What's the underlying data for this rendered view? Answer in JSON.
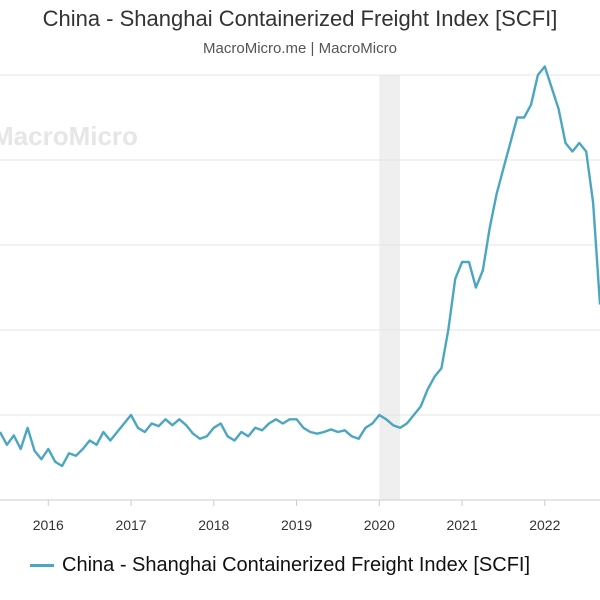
{
  "header": {
    "title": "China - Shanghai Containerized Freight Index [SCFI]",
    "source": "MacroMicro.me | MacroMicro"
  },
  "watermark": "MacroMicro",
  "colors": {
    "series": "#4ba7c0",
    "grid": "#e6e6e6",
    "recession_band": "#efefef",
    "axis": "#333333"
  },
  "chart_data": {
    "type": "line",
    "title": "China - Shanghai Containerized Freight Index [SCFI]",
    "xlabel": "",
    "ylabel": "",
    "x_ticks": [
      "2016",
      "2017",
      "2018",
      "2019",
      "2020",
      "2021",
      "2022"
    ],
    "xlim": [
      "2015-06",
      "2022-09"
    ],
    "ylim": [
      0,
      5000
    ],
    "y_gridlines": [
      1000,
      2000,
      3000,
      4000,
      5000
    ],
    "y_tick_labels_visible": false,
    "grid": "horizontal",
    "legend": "bottom",
    "shaded_band": {
      "from": "2020-01",
      "to": "2020-04"
    },
    "series": [
      {
        "name": "China - Shanghai Containerized Freight Index [SCFI]",
        "points": [
          {
            "x": "2015-06",
            "y": 800
          },
          {
            "x": "2015-07",
            "y": 650
          },
          {
            "x": "2015-08",
            "y": 760
          },
          {
            "x": "2015-09",
            "y": 600
          },
          {
            "x": "2015-10",
            "y": 850
          },
          {
            "x": "2015-11",
            "y": 580
          },
          {
            "x": "2015-12",
            "y": 480
          },
          {
            "x": "2016-01",
            "y": 600
          },
          {
            "x": "2016-02",
            "y": 450
          },
          {
            "x": "2016-03",
            "y": 400
          },
          {
            "x": "2016-04",
            "y": 550
          },
          {
            "x": "2016-05",
            "y": 520
          },
          {
            "x": "2016-06",
            "y": 600
          },
          {
            "x": "2016-07",
            "y": 700
          },
          {
            "x": "2016-08",
            "y": 650
          },
          {
            "x": "2016-09",
            "y": 800
          },
          {
            "x": "2016-10",
            "y": 700
          },
          {
            "x": "2016-11",
            "y": 800
          },
          {
            "x": "2016-12",
            "y": 900
          },
          {
            "x": "2017-01",
            "y": 1000
          },
          {
            "x": "2017-02",
            "y": 850
          },
          {
            "x": "2017-03",
            "y": 800
          },
          {
            "x": "2017-04",
            "y": 900
          },
          {
            "x": "2017-05",
            "y": 870
          },
          {
            "x": "2017-06",
            "y": 950
          },
          {
            "x": "2017-07",
            "y": 880
          },
          {
            "x": "2017-08",
            "y": 950
          },
          {
            "x": "2017-09",
            "y": 880
          },
          {
            "x": "2017-10",
            "y": 780
          },
          {
            "x": "2017-11",
            "y": 720
          },
          {
            "x": "2017-12",
            "y": 750
          },
          {
            "x": "2018-01",
            "y": 850
          },
          {
            "x": "2018-02",
            "y": 900
          },
          {
            "x": "2018-03",
            "y": 750
          },
          {
            "x": "2018-04",
            "y": 700
          },
          {
            "x": "2018-05",
            "y": 800
          },
          {
            "x": "2018-06",
            "y": 750
          },
          {
            "x": "2018-07",
            "y": 850
          },
          {
            "x": "2018-08",
            "y": 820
          },
          {
            "x": "2018-09",
            "y": 900
          },
          {
            "x": "2018-10",
            "y": 950
          },
          {
            "x": "2018-11",
            "y": 900
          },
          {
            "x": "2018-12",
            "y": 950
          },
          {
            "x": "2019-01",
            "y": 950
          },
          {
            "x": "2019-02",
            "y": 850
          },
          {
            "x": "2019-03",
            "y": 800
          },
          {
            "x": "2019-04",
            "y": 780
          },
          {
            "x": "2019-05",
            "y": 800
          },
          {
            "x": "2019-06",
            "y": 830
          },
          {
            "x": "2019-07",
            "y": 800
          },
          {
            "x": "2019-08",
            "y": 820
          },
          {
            "x": "2019-09",
            "y": 750
          },
          {
            "x": "2019-10",
            "y": 720
          },
          {
            "x": "2019-11",
            "y": 850
          },
          {
            "x": "2019-12",
            "y": 900
          },
          {
            "x": "2020-01",
            "y": 1000
          },
          {
            "x": "2020-02",
            "y": 950
          },
          {
            "x": "2020-03",
            "y": 880
          },
          {
            "x": "2020-04",
            "y": 850
          },
          {
            "x": "2020-05",
            "y": 900
          },
          {
            "x": "2020-06",
            "y": 1000
          },
          {
            "x": "2020-07",
            "y": 1100
          },
          {
            "x": "2020-08",
            "y": 1300
          },
          {
            "x": "2020-09",
            "y": 1450
          },
          {
            "x": "2020-10",
            "y": 1550
          },
          {
            "x": "2020-11",
            "y": 2000
          },
          {
            "x": "2020-12",
            "y": 2600
          },
          {
            "x": "2021-01",
            "y": 2800
          },
          {
            "x": "2021-02",
            "y": 2800
          },
          {
            "x": "2021-03",
            "y": 2500
          },
          {
            "x": "2021-04",
            "y": 2700
          },
          {
            "x": "2021-05",
            "y": 3200
          },
          {
            "x": "2021-06",
            "y": 3600
          },
          {
            "x": "2021-07",
            "y": 3900
          },
          {
            "x": "2021-08",
            "y": 4200
          },
          {
            "x": "2021-09",
            "y": 4500
          },
          {
            "x": "2021-10",
            "y": 4500
          },
          {
            "x": "2021-11",
            "y": 4650
          },
          {
            "x": "2021-12",
            "y": 5000
          },
          {
            "x": "2022-01",
            "y": 5100
          },
          {
            "x": "2022-02",
            "y": 4850
          },
          {
            "x": "2022-03",
            "y": 4600
          },
          {
            "x": "2022-04",
            "y": 4200
          },
          {
            "x": "2022-05",
            "y": 4100
          },
          {
            "x": "2022-06",
            "y": 4200
          },
          {
            "x": "2022-07",
            "y": 4100
          },
          {
            "x": "2022-08",
            "y": 3500
          },
          {
            "x": "2022-09",
            "y": 2300
          }
        ]
      }
    ]
  }
}
